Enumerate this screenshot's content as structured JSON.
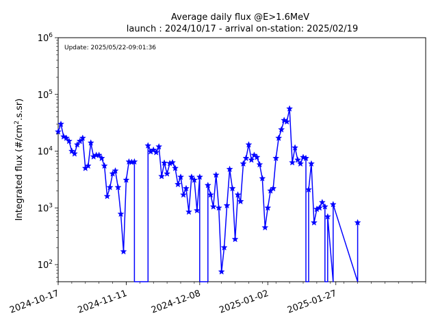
{
  "chart_data": {
    "type": "line",
    "title_line1": "Average daily flux @E>1.6MeV",
    "title_line2": "launch : 2024/10/17 - arrival on-station: 2025/02/19",
    "annotation": "Update: 2025/05/22-09:01:36",
    "xlabel": "",
    "ylabel_prefix": "Integrated flux (#/cm",
    "ylabel_sup": "2",
    "ylabel_suffix": ".s.sr)",
    "y_scale": "log",
    "ylim": [
      50,
      1000000
    ],
    "xlim": [
      "2024-10-17",
      "2025-02-29"
    ],
    "x_ticks": [
      "2024-10-17",
      "2024-11-11",
      "2024-12-08",
      "2025-01-02",
      "2025-01-27"
    ],
    "y_ticks": [
      {
        "value": 100,
        "base": "10",
        "exp": "2"
      },
      {
        "value": 1000,
        "base": "10",
        "exp": "3"
      },
      {
        "value": 10000,
        "base": "10",
        "exp": "4"
      },
      {
        "value": 100000,
        "base": "10",
        "exp": "5"
      },
      {
        "value": 1000000,
        "base": "10",
        "exp": "6"
      }
    ],
    "grid": false,
    "color": "#0000ff",
    "marker": "star",
    "series": [
      {
        "values": [
          [
            "2024-10-17",
            22000
          ],
          [
            "2024-10-18",
            30000
          ],
          [
            "2024-10-19",
            18000
          ],
          [
            "2024-10-20",
            17000
          ],
          [
            "2024-10-21",
            15000
          ],
          [
            "2024-10-22",
            10000
          ],
          [
            "2024-10-23",
            9000
          ],
          [
            "2024-10-24",
            13000
          ],
          [
            "2024-10-25",
            15000
          ],
          [
            "2024-10-26",
            17000
          ],
          [
            "2024-10-27",
            5000
          ],
          [
            "2024-10-28",
            5500
          ],
          [
            "2024-10-29",
            14000
          ],
          [
            "2024-10-30",
            8000
          ],
          [
            "2024-10-31",
            8500
          ],
          [
            "2024-11-01",
            8500
          ],
          [
            "2024-11-02",
            7500
          ],
          [
            "2024-11-03",
            5500
          ],
          [
            "2024-11-04",
            1600
          ],
          [
            "2024-11-05",
            2300
          ],
          [
            "2024-11-06",
            4000
          ],
          [
            "2024-11-07",
            4500
          ],
          [
            "2024-11-08",
            2300
          ],
          [
            "2024-11-09",
            780
          ],
          [
            "2024-11-10",
            170
          ],
          [
            "2024-11-11",
            3100
          ],
          [
            "2024-11-12",
            6500
          ],
          [
            "2024-11-13",
            6400
          ],
          [
            "2024-11-14",
            6500
          ],
          [
            "2024-11-14",
            50
          ],
          [
            "2024-11-19",
            50
          ],
          [
            "2024-11-19",
            12500
          ],
          [
            "2024-11-20",
            9800
          ],
          [
            "2024-11-21",
            10500
          ],
          [
            "2024-11-22",
            9500
          ],
          [
            "2024-11-23",
            12000
          ],
          [
            "2024-11-24",
            3600
          ],
          [
            "2024-11-25",
            6200
          ],
          [
            "2024-11-26",
            4000
          ],
          [
            "2024-11-27",
            6100
          ],
          [
            "2024-11-28",
            6300
          ],
          [
            "2024-11-29",
            5000
          ],
          [
            "2024-11-30",
            2600
          ],
          [
            "2024-12-01",
            3500
          ],
          [
            "2024-12-02",
            1700
          ],
          [
            "2024-12-03",
            2200
          ],
          [
            "2024-12-04",
            850
          ],
          [
            "2024-12-05",
            3500
          ],
          [
            "2024-12-06",
            3100
          ],
          [
            "2024-12-07",
            900
          ],
          [
            "2024-12-08",
            3500
          ],
          [
            "2024-12-08",
            50
          ],
          [
            "2024-12-11",
            50
          ],
          [
            "2024-12-11",
            2500
          ],
          [
            "2024-12-12",
            1700
          ],
          [
            "2024-12-13",
            1050
          ],
          [
            "2024-12-14",
            3800
          ],
          [
            "2024-12-15",
            1000
          ],
          [
            "2024-12-16",
            75
          ],
          [
            "2024-12-17",
            200
          ],
          [
            "2024-12-18",
            1100
          ],
          [
            "2024-12-19",
            4800
          ],
          [
            "2024-12-20",
            2200
          ],
          [
            "2024-12-21",
            280
          ],
          [
            "2024-12-22",
            1700
          ],
          [
            "2024-12-23",
            1300
          ],
          [
            "2024-12-24",
            6000
          ],
          [
            "2024-12-25",
            7500
          ],
          [
            "2024-12-26",
            13000
          ],
          [
            "2024-12-27",
            7000
          ],
          [
            "2024-12-28",
            8500
          ],
          [
            "2024-12-29",
            7800
          ],
          [
            "2024-12-30",
            5800
          ],
          [
            "2024-12-31",
            3300
          ],
          [
            "2025-01-01",
            450
          ],
          [
            "2025-01-02",
            1000
          ],
          [
            "2025-01-03",
            2000
          ],
          [
            "2025-01-04",
            2200
          ],
          [
            "2025-01-05",
            7500
          ],
          [
            "2025-01-06",
            17000
          ],
          [
            "2025-01-07",
            24000
          ],
          [
            "2025-01-08",
            35000
          ],
          [
            "2025-01-09",
            33000
          ],
          [
            "2025-01-10",
            56000
          ],
          [
            "2025-01-11",
            6300
          ],
          [
            "2025-01-12",
            11500
          ],
          [
            "2025-01-13",
            7000
          ],
          [
            "2025-01-14",
            6000
          ],
          [
            "2025-01-15",
            7800
          ],
          [
            "2025-01-16",
            7500
          ],
          [
            "2025-01-16",
            50
          ],
          [
            "2025-01-17",
            50
          ],
          [
            "2025-01-17",
            2100
          ],
          [
            "2025-01-18",
            6000
          ],
          [
            "2025-01-19",
            550
          ],
          [
            "2025-01-20",
            950
          ],
          [
            "2025-01-21",
            1000
          ],
          [
            "2025-01-22",
            1250
          ],
          [
            "2025-01-23",
            1050
          ],
          [
            "2025-01-23",
            50
          ],
          [
            "2025-01-24",
            50
          ],
          [
            "2025-01-24",
            700
          ],
          [
            "2025-01-26",
            50
          ],
          [
            "2025-01-26",
            1150
          ],
          [
            "2025-02-04",
            50
          ],
          [
            "2025-02-04",
            550
          ]
        ]
      }
    ]
  }
}
